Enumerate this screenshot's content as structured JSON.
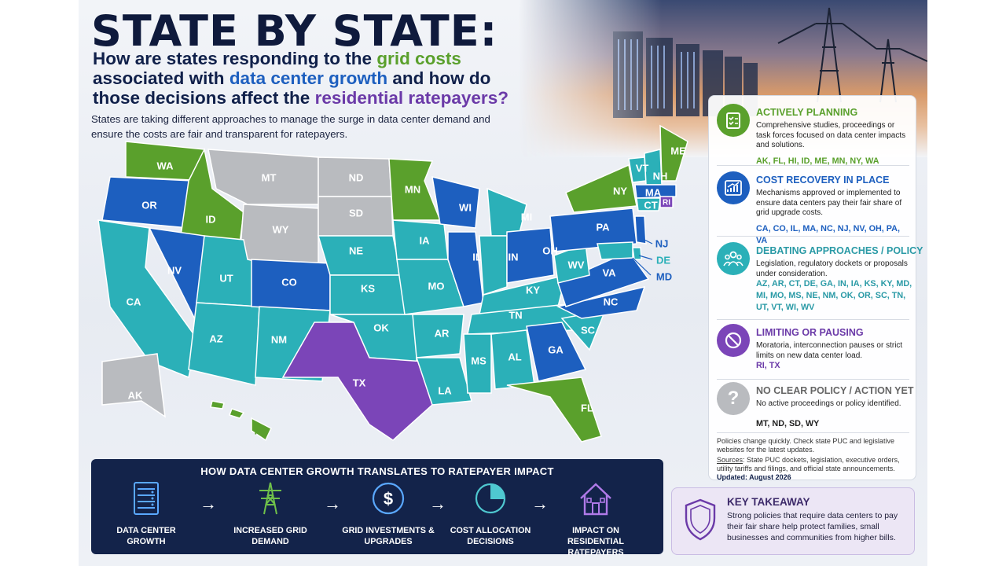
{
  "title": "STATE BY STATE:",
  "subtitle": {
    "p1": "How are states responding to the ",
    "h1": "grid costs",
    "p2": " associated with ",
    "h2": "data center growth",
    "p3": "  and how do those decisions affect the ",
    "h3": "residential ratepayers?"
  },
  "intro": "States are taking different approaches to manage the surge in data center demand and ensure the costs are fair and transparent for ratepayers.",
  "colors": {
    "actively_planning": "#5aa02c",
    "cost_recovery": "#1d5fbf",
    "debating": "#2bb0b8",
    "limiting": "#7b45b8",
    "no_policy": "#b9bbbf",
    "flow_bg": "#13234a",
    "takeaway_bg": "#ece6f5"
  },
  "map": {
    "states": [
      "WA",
      "OR",
      "CA",
      "ID",
      "NV",
      "MT",
      "WY",
      "UT",
      "AZ",
      "CO",
      "NM",
      "ND",
      "SD",
      "NE",
      "KS",
      "OK",
      "TX",
      "MN",
      "IA",
      "MO",
      "AR",
      "LA",
      "WI",
      "IL",
      "MI",
      "IN",
      "OH",
      "KY",
      "TN",
      "MS",
      "AL",
      "GA",
      "FL",
      "SC",
      "NC",
      "VA",
      "WV",
      "PA",
      "NY",
      "VT",
      "NH",
      "ME",
      "MA",
      "CT",
      "RI",
      "NJ",
      "DE",
      "MD",
      "AK",
      "HI"
    ]
  },
  "legend": {
    "categories": [
      {
        "icon": "checklist-icon",
        "heading": "ACTIVELY PLANNING",
        "description": "Comprehensive studies, proceedings or task forces focused on data center impacts and solutions.",
        "states": "AK, FL, HI, ID, ME, MN, NY, WA"
      },
      {
        "icon": "chart-growth-icon",
        "heading": "COST RECOVERY IN PLACE",
        "description": "Mechanisms approved or implemented to ensure data centers pay their fair share of grid upgrade costs.",
        "states": "CA, CO, IL, MA, NC, NJ, NV, OH, PA, VA"
      },
      {
        "icon": "people-icon",
        "heading": "DEBATING APPROACHES / POLICY",
        "description": "Legislation, regulatory dockets or proposals under consideration.",
        "states": "AZ, AR, CT, DE, GA, IN, IA, KS, KY, MD, MI, MO, MS, NE, NM, OK, OR, SC, TN, UT, VT, WI, WV"
      },
      {
        "icon": "prohibited-icon",
        "heading": "LIMITING OR PAUSING",
        "description": "Moratoria, interconnection pauses or strict limits on new data center load.",
        "states": "RI, TX"
      },
      {
        "icon": "question-icon",
        "heading": "NO CLEAR POLICY / ACTION YET",
        "description": "No active proceedings or policy identified.",
        "states": "MT, ND, SD, WY"
      }
    ],
    "note": "Policies change quickly. Check state PUC and legislative websites for the latest updates.",
    "sources_label": "Sources",
    "sources": ": State PUC dockets, legislation, executive orders, utility tariffs and filings, and official state announcements.",
    "updated": "Updated: August 2026"
  },
  "flow": {
    "title": "HOW DATA CENTER GROWTH TRANSLATES TO RATEPAYER IMPACT",
    "steps": [
      {
        "icon": "server-rack-icon",
        "label": "DATA CENTER GROWTH"
      },
      {
        "icon": "transmission-tower-icon",
        "label": "INCREASED GRID DEMAND"
      },
      {
        "icon": "dollar-icon",
        "label": "GRID INVESTMENTS & UPGRADES"
      },
      {
        "icon": "pie-chart-icon",
        "label": "COST ALLOCATION DECISIONS"
      },
      {
        "icon": "house-icon",
        "label": "IMPACT ON RESIDENTIAL RATEPAYERS"
      }
    ],
    "arrow": "→"
  },
  "takeaway": {
    "icon": "shield-icon",
    "heading": "KEY TAKEAWAY",
    "text": "Strong policies that require data centers to pay their fair share help protect families, small businesses and communities from higher bills."
  }
}
